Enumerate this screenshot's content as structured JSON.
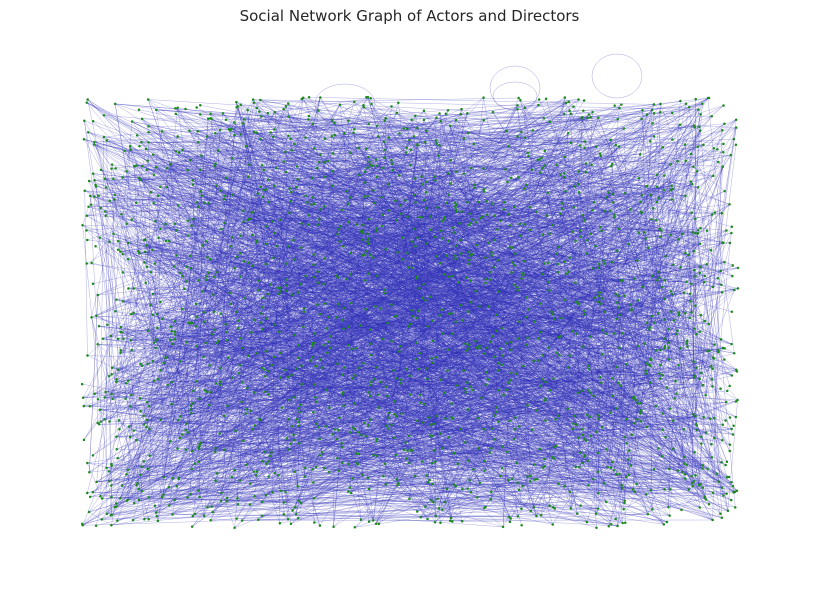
{
  "title": "Social Network Graph of Actors and Directors",
  "colors": {
    "node": "#1a8a1a",
    "edge": "#3030b8",
    "title_text": "#262626",
    "background": "#ffffff"
  },
  "chart_data": {
    "type": "network",
    "title": "Social Network Graph of Actors and Directors",
    "node_count_visible": "approx. 2000",
    "edge_count_visible": "approx. 4500",
    "self_loops_visible": 4,
    "axes_visible": false,
    "grid": false,
    "legend": "none"
  }
}
